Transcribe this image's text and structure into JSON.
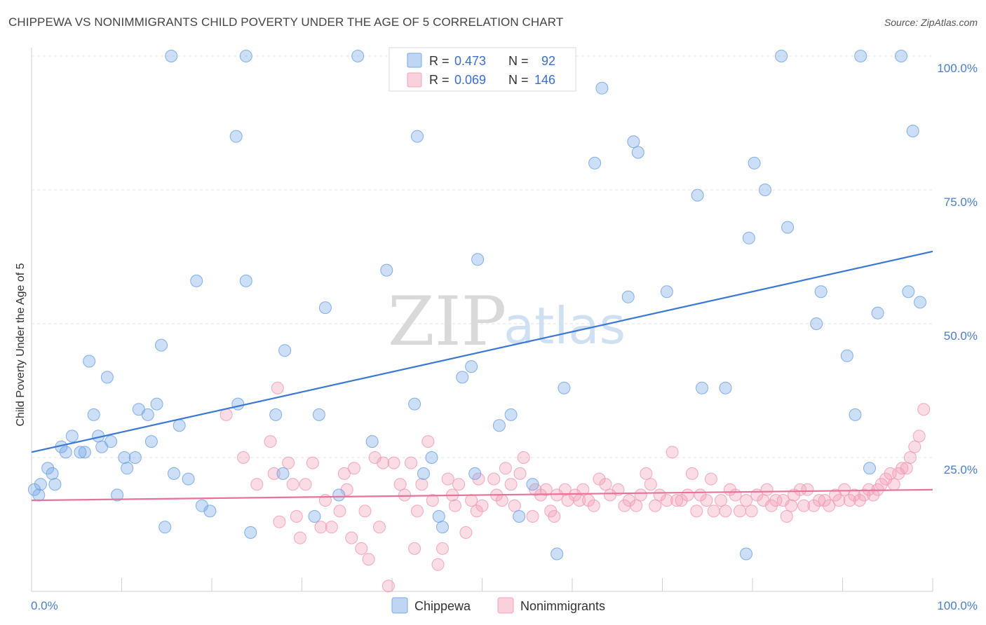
{
  "header": {
    "title": "CHIPPEWA VS NONIMMIGRANTS CHILD POVERTY UNDER THE AGE OF 5 CORRELATION CHART",
    "source": "Source: ZipAtlas.com"
  },
  "watermark": {
    "zip": "ZIP",
    "atlas": "atlas"
  },
  "legend": {
    "r_label": "R =",
    "n_label": "N =",
    "items": [
      {
        "r": "0.473",
        "n": "92",
        "color": "#6fa3e6"
      },
      {
        "r": "0.069",
        "n": "146",
        "color": "#f29ab4"
      }
    ]
  },
  "chart_data": {
    "type": "scatter",
    "title": "CHIPPEWA VS NONIMMIGRANTS CHILD POVERTY UNDER THE AGE OF 5 CORRELATION CHART",
    "xlabel": "",
    "ylabel": "Child Poverty Under the Age of 5",
    "xlim": [
      0,
      100
    ],
    "ylim": [
      0,
      100
    ],
    "x_tick_labels": [
      "0.0%",
      "100.0%"
    ],
    "y_ticks": [
      25,
      50,
      75,
      100
    ],
    "y_tick_labels": [
      "25.0%",
      "50.0%",
      "75.0%",
      "100.0%"
    ],
    "grid": true,
    "legend_position": "top-center",
    "series": [
      {
        "name": "Chippewa",
        "color": "#6fa3e6",
        "trend": {
          "start": [
            0,
            26
          ],
          "end": [
            100,
            63.5
          ]
        },
        "points": [
          [
            0.3,
            19
          ],
          [
            0.8,
            18
          ],
          [
            1.0,
            20
          ],
          [
            1.8,
            23
          ],
          [
            2.3,
            22
          ],
          [
            2.6,
            20
          ],
          [
            3.3,
            27
          ],
          [
            3.8,
            26
          ],
          [
            4.5,
            29
          ],
          [
            5.4,
            26
          ],
          [
            5.9,
            26
          ],
          [
            6.4,
            43
          ],
          [
            6.9,
            33
          ],
          [
            7.4,
            29
          ],
          [
            7.8,
            27
          ],
          [
            8.4,
            40
          ],
          [
            8.8,
            28
          ],
          [
            9.5,
            18
          ],
          [
            10.3,
            25
          ],
          [
            10.6,
            23
          ],
          [
            11.5,
            25
          ],
          [
            11.9,
            34
          ],
          [
            12.9,
            33
          ],
          [
            13.3,
            28
          ],
          [
            13.9,
            35
          ],
          [
            14.4,
            46
          ],
          [
            14.8,
            12
          ],
          [
            15.5,
            100
          ],
          [
            15.8,
            22
          ],
          [
            16.4,
            31
          ],
          [
            17.4,
            21
          ],
          [
            18.3,
            58
          ],
          [
            18.9,
            16
          ],
          [
            19.8,
            15
          ],
          [
            22.7,
            85
          ],
          [
            22.9,
            35
          ],
          [
            23.8,
            100
          ],
          [
            23.8,
            58
          ],
          [
            24.3,
            11
          ],
          [
            27.1,
            33
          ],
          [
            27.9,
            22
          ],
          [
            28.1,
            45
          ],
          [
            31.4,
            14
          ],
          [
            31.9,
            33
          ],
          [
            32.6,
            53
          ],
          [
            34.1,
            18
          ],
          [
            36.2,
            100
          ],
          [
            37.8,
            28
          ],
          [
            39.4,
            60
          ],
          [
            42.5,
            35
          ],
          [
            42.8,
            85
          ],
          [
            43.5,
            22
          ],
          [
            44.4,
            25
          ],
          [
            45.2,
            14
          ],
          [
            45.6,
            12
          ],
          [
            47.8,
            40
          ],
          [
            48.8,
            42
          ],
          [
            49.2,
            22
          ],
          [
            49.5,
            62
          ],
          [
            51.9,
            31
          ],
          [
            53.2,
            33
          ],
          [
            54.1,
            14
          ],
          [
            55.6,
            20
          ],
          [
            58.3,
            7
          ],
          [
            59.1,
            38
          ],
          [
            62.5,
            80
          ],
          [
            63.3,
            94
          ],
          [
            66.2,
            55
          ],
          [
            66.8,
            84
          ],
          [
            67.3,
            82
          ],
          [
            70.5,
            56
          ],
          [
            73.9,
            74
          ],
          [
            74.4,
            38
          ],
          [
            77.0,
            38
          ],
          [
            79.3,
            7
          ],
          [
            79.6,
            66
          ],
          [
            80.2,
            80
          ],
          [
            81.4,
            75
          ],
          [
            83.2,
            100
          ],
          [
            83.9,
            68
          ],
          [
            87.1,
            50
          ],
          [
            87.6,
            56
          ],
          [
            90.5,
            44
          ],
          [
            91.4,
            33
          ],
          [
            92.0,
            100
          ],
          [
            93.0,
            23
          ],
          [
            93.9,
            52
          ],
          [
            96.5,
            100
          ],
          [
            97.3,
            56
          ],
          [
            97.8,
            86
          ],
          [
            98.6,
            54
          ]
        ]
      },
      {
        "name": "Nonimmigrants",
        "color": "#f29ab4",
        "trend": {
          "start": [
            0,
            17
          ],
          "end": [
            100,
            19
          ]
        },
        "points": [
          [
            21.6,
            33
          ],
          [
            23.5,
            25
          ],
          [
            25.0,
            20
          ],
          [
            26.5,
            28
          ],
          [
            26.9,
            22
          ],
          [
            27.3,
            38
          ],
          [
            27.5,
            13
          ],
          [
            28.5,
            24
          ],
          [
            29.0,
            20
          ],
          [
            29.4,
            14
          ],
          [
            29.8,
            10
          ],
          [
            30.4,
            20
          ],
          [
            31.2,
            24
          ],
          [
            32.1,
            12
          ],
          [
            32.6,
            17
          ],
          [
            33.3,
            12
          ],
          [
            34.2,
            15
          ],
          [
            34.7,
            22
          ],
          [
            35.0,
            19
          ],
          [
            35.5,
            10
          ],
          [
            35.8,
            23
          ],
          [
            36.6,
            8
          ],
          [
            37.0,
            15
          ],
          [
            37.4,
            6
          ],
          [
            38.1,
            25
          ],
          [
            38.6,
            12
          ],
          [
            39.0,
            24
          ],
          [
            39.6,
            1
          ],
          [
            40.2,
            24
          ],
          [
            40.9,
            20
          ],
          [
            41.4,
            18
          ],
          [
            42.1,
            24
          ],
          [
            42.5,
            8
          ],
          [
            42.8,
            15
          ],
          [
            43.3,
            20
          ],
          [
            44.0,
            28
          ],
          [
            44.5,
            17
          ],
          [
            45.1,
            5
          ],
          [
            45.6,
            8
          ],
          [
            46.2,
            21
          ],
          [
            46.7,
            18
          ],
          [
            47.0,
            16
          ],
          [
            47.4,
            20
          ],
          [
            48.2,
            11
          ],
          [
            48.8,
            17
          ],
          [
            49.4,
            15
          ],
          [
            49.6,
            21
          ],
          [
            50.0,
            16
          ],
          [
            51.3,
            21
          ],
          [
            51.6,
            18
          ],
          [
            52.2,
            17
          ],
          [
            52.6,
            23
          ],
          [
            53.2,
            20
          ],
          [
            53.6,
            16
          ],
          [
            54.2,
            22
          ],
          [
            54.6,
            25
          ],
          [
            55.6,
            14
          ],
          [
            55.9,
            19
          ],
          [
            56.5,
            18
          ],
          [
            57.1,
            19
          ],
          [
            57.6,
            15
          ],
          [
            58.0,
            14
          ],
          [
            58.3,
            18
          ],
          [
            59.2,
            19
          ],
          [
            59.5,
            17
          ],
          [
            60.3,
            18
          ],
          [
            60.8,
            17
          ],
          [
            61.2,
            19
          ],
          [
            61.8,
            17
          ],
          [
            62.4,
            16
          ],
          [
            63.0,
            21
          ],
          [
            63.7,
            20
          ],
          [
            64.2,
            18
          ],
          [
            65.1,
            19
          ],
          [
            65.8,
            16
          ],
          [
            66.3,
            17
          ],
          [
            67.1,
            16
          ],
          [
            67.6,
            18
          ],
          [
            68.2,
            22
          ],
          [
            68.7,
            20
          ],
          [
            69.2,
            16
          ],
          [
            69.7,
            18
          ],
          [
            70.5,
            17
          ],
          [
            71.1,
            26
          ],
          [
            71.6,
            17
          ],
          [
            72.1,
            17
          ],
          [
            72.8,
            18
          ],
          [
            73.3,
            22
          ],
          [
            73.8,
            15
          ],
          [
            74.2,
            18
          ],
          [
            74.9,
            17
          ],
          [
            75.4,
            21
          ],
          [
            75.7,
            15
          ],
          [
            76.5,
            17
          ],
          [
            77.0,
            15
          ],
          [
            77.5,
            19
          ],
          [
            78.1,
            18
          ],
          [
            78.6,
            15
          ],
          [
            79.3,
            17
          ],
          [
            79.9,
            15
          ],
          [
            80.5,
            18
          ],
          [
            81.2,
            17
          ],
          [
            81.6,
            19
          ],
          [
            82.1,
            16
          ],
          [
            82.6,
            17
          ],
          [
            83.4,
            17
          ],
          [
            83.8,
            14
          ],
          [
            84.3,
            16
          ],
          [
            84.6,
            18
          ],
          [
            85.3,
            19
          ],
          [
            85.7,
            16
          ],
          [
            86.1,
            19
          ],
          [
            86.8,
            16
          ],
          [
            87.4,
            17
          ],
          [
            88.0,
            17
          ],
          [
            88.5,
            16
          ],
          [
            89.2,
            18
          ],
          [
            89.6,
            17
          ],
          [
            90.2,
            19
          ],
          [
            90.8,
            17
          ],
          [
            91.3,
            18
          ],
          [
            91.9,
            17
          ],
          [
            92.4,
            18
          ],
          [
            92.9,
            19
          ],
          [
            93.4,
            18
          ],
          [
            93.9,
            19
          ],
          [
            94.3,
            20
          ],
          [
            94.8,
            21
          ],
          [
            95.3,
            22
          ],
          [
            95.7,
            20
          ],
          [
            96.2,
            22
          ],
          [
            96.6,
            23
          ],
          [
            97.1,
            23
          ],
          [
            97.5,
            25
          ],
          [
            98.0,
            27
          ],
          [
            98.5,
            29
          ],
          [
            99.0,
            34
          ]
        ]
      }
    ]
  }
}
